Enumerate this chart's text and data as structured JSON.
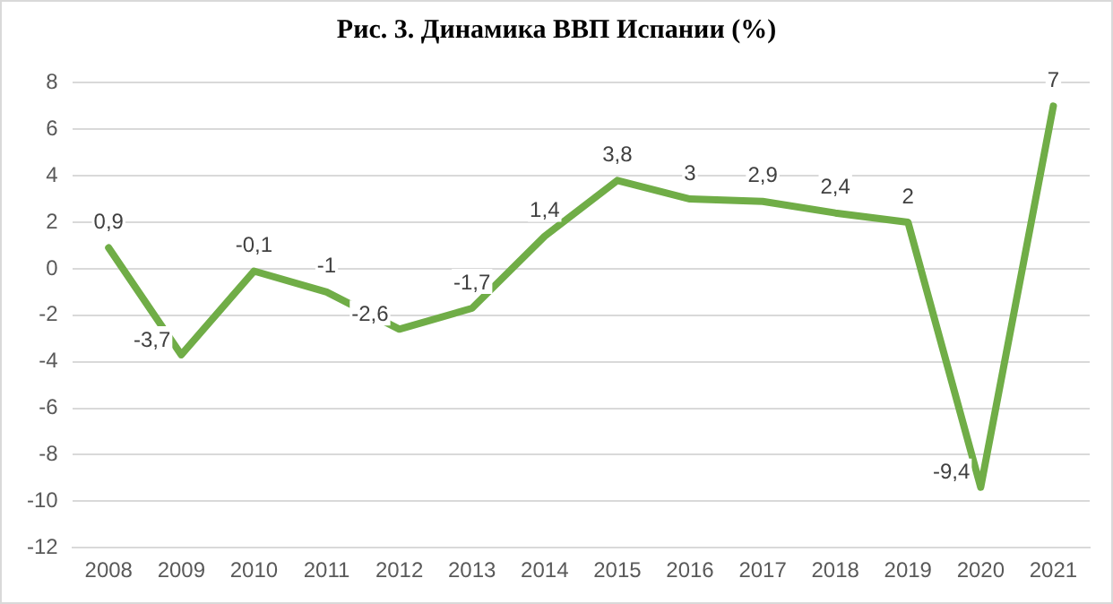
{
  "chart_data": {
    "type": "line",
    "title": "Рис. 3. Динамика ВВП Испании (%)",
    "categories": [
      "2008",
      "2009",
      "2010",
      "2011",
      "2012",
      "2013",
      "2014",
      "2015",
      "2016",
      "2017",
      "2018",
      "2019",
      "2020",
      "2021"
    ],
    "values": [
      0.9,
      -3.7,
      -0.1,
      -1,
      -2.6,
      -1.7,
      1.4,
      3.8,
      3,
      2.9,
      2.4,
      2,
      -9.4,
      7
    ],
    "value_labels": [
      "0,9",
      "-3,7",
      "-0,1",
      "-1",
      "-2,6",
      "-1,7",
      "1,4",
      "3,8",
      "3",
      "2,9",
      "2,4",
      "2",
      "-9,4",
      "7"
    ],
    "color": "#70ad47",
    "ylim": [
      -12,
      8
    ],
    "yticks": [
      -12,
      -10,
      -8,
      -6,
      -4,
      -2,
      0,
      2,
      4,
      6,
      8
    ],
    "grid": "y",
    "legend": false,
    "marker": "none",
    "line_style": "solid"
  }
}
